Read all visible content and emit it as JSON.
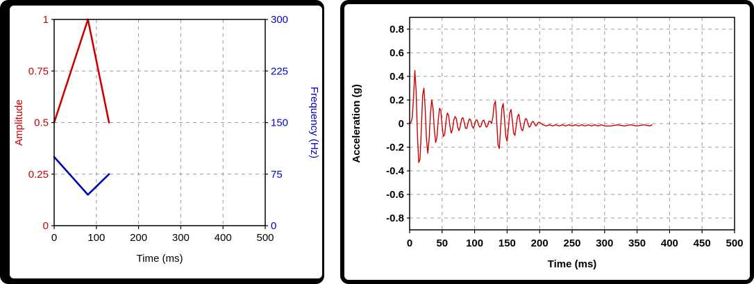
{
  "palette": {
    "window_bg": "#000000",
    "panel_bg": "#ffffff",
    "grid": "#999999",
    "red": "#cc0000",
    "blue": "#0000cc",
    "axis": "#000000"
  },
  "chart_data": [
    {
      "id": "pulse-parameters",
      "type": "line",
      "title": "",
      "xlabel": "Time (ms)",
      "xlim": [
        0,
        500
      ],
      "xticks": [
        0,
        100,
        200,
        300,
        400,
        500
      ],
      "grid": true,
      "legend": "none",
      "axes": [
        {
          "side": "left",
          "label": "Amplitude",
          "lim": [
            0,
            1
          ],
          "ticks": [
            0,
            0.25,
            0.5,
            0.75,
            1
          ],
          "color": "#cc0000"
        },
        {
          "side": "right",
          "label": "Frequency (Hz)",
          "lim": [
            0,
            300
          ],
          "ticks": [
            0,
            75,
            150,
            225,
            300
          ],
          "color": "#0000cc"
        }
      ],
      "series": [
        {
          "name": "Amplitude",
          "axis": 0,
          "color": "#cc0000",
          "width": 2.6,
          "points": [
            [
              0,
              0.5
            ],
            [
              80,
              1.0
            ],
            [
              130,
              0.5
            ]
          ]
        },
        {
          "name": "Frequency",
          "axis": 1,
          "color": "#0000bb",
          "width": 2.6,
          "points": [
            [
              0,
              100
            ],
            [
              80,
              45
            ],
            [
              130,
              75
            ]
          ]
        }
      ]
    },
    {
      "id": "acceleration-response",
      "type": "line",
      "title": "",
      "xlabel": "Time (ms)",
      "xlim": [
        0,
        500
      ],
      "xticks": [
        0,
        50,
        100,
        150,
        200,
        250,
        300,
        350,
        400,
        450,
        500
      ],
      "grid": true,
      "legend": "none",
      "axes": [
        {
          "side": "left",
          "label": "Acceleration (g)",
          "lim": [
            -0.9,
            0.9
          ],
          "ticks": [
            -0.8,
            -0.6,
            -0.4,
            -0.2,
            0,
            0.2,
            0.4,
            0.6,
            0.8
          ],
          "color": "#000000"
        }
      ],
      "series": [
        {
          "name": "Acceleration",
          "axis": 0,
          "color": "#cc0000",
          "width": 1.4,
          "points": [
            [
              0,
              0
            ],
            [
              2,
              0.01
            ],
            [
              4,
              0.05
            ],
            [
              6,
              0.22
            ],
            [
              8,
              0.45
            ],
            [
              10,
              0.28
            ],
            [
              12,
              -0.1
            ],
            [
              14,
              -0.33
            ],
            [
              16,
              -0.3
            ],
            [
              18,
              -0.05
            ],
            [
              20,
              0.24
            ],
            [
              22,
              0.3
            ],
            [
              24,
              0.12
            ],
            [
              26,
              -0.14
            ],
            [
              28,
              -0.25
            ],
            [
              30,
              -0.13
            ],
            [
              32,
              0.08
            ],
            [
              34,
              0.2
            ],
            [
              36,
              0.13
            ],
            [
              38,
              -0.05
            ],
            [
              40,
              -0.16
            ],
            [
              42,
              -0.12
            ],
            [
              44,
              0.03
            ],
            [
              46,
              0.13
            ],
            [
              48,
              0.11
            ],
            [
              50,
              -0.02
            ],
            [
              52,
              -0.11
            ],
            [
              54,
              -0.09
            ],
            [
              56,
              0.02
            ],
            [
              58,
              0.09
            ],
            [
              60,
              0.07
            ],
            [
              62,
              -0.02
            ],
            [
              64,
              -0.08
            ],
            [
              66,
              -0.05
            ],
            [
              68,
              0.03
            ],
            [
              70,
              0.06
            ],
            [
              72,
              0.04
            ],
            [
              74,
              -0.03
            ],
            [
              76,
              -0.06
            ],
            [
              78,
              -0.02
            ],
            [
              80,
              0.04
            ],
            [
              82,
              0.05
            ],
            [
              84,
              0.01
            ],
            [
              86,
              -0.04
            ],
            [
              88,
              -0.04
            ],
            [
              90,
              0.01
            ],
            [
              92,
              0.04
            ],
            [
              94,
              0.03
            ],
            [
              96,
              -0.02
            ],
            [
              98,
              -0.04
            ],
            [
              100,
              -0.01
            ],
            [
              102,
              0.03
            ],
            [
              104,
              0.03
            ],
            [
              106,
              -0.01
            ],
            [
              108,
              -0.03
            ],
            [
              110,
              -0.02
            ],
            [
              112,
              0.02
            ],
            [
              114,
              0.03
            ],
            [
              116,
              0
            ],
            [
              118,
              -0.03
            ],
            [
              120,
              -0.02
            ],
            [
              122,
              0.02
            ],
            [
              124,
              0.02
            ],
            [
              126,
              0
            ],
            [
              128,
              0.05
            ],
            [
              130,
              0.16
            ],
            [
              132,
              0.19
            ],
            [
              134,
              0.02
            ],
            [
              136,
              -0.18
            ],
            [
              138,
              -0.21
            ],
            [
              140,
              -0.04
            ],
            [
              142,
              0.13
            ],
            [
              144,
              0.17
            ],
            [
              146,
              0.04
            ],
            [
              148,
              -0.11
            ],
            [
              150,
              -0.15
            ],
            [
              152,
              -0.04
            ],
            [
              154,
              0.09
            ],
            [
              156,
              0.12
            ],
            [
              158,
              0.03
            ],
            [
              160,
              -0.08
            ],
            [
              162,
              -0.1
            ],
            [
              164,
              -0.02
            ],
            [
              166,
              0.06
            ],
            [
              168,
              0.08
            ],
            [
              170,
              0.01
            ],
            [
              172,
              -0.05
            ],
            [
              174,
              -0.06
            ],
            [
              176,
              -0.01
            ],
            [
              178,
              0.04
            ],
            [
              180,
              0.04
            ],
            [
              182,
              0
            ],
            [
              184,
              -0.03
            ],
            [
              186,
              -0.02
            ],
            [
              188,
              0.01
            ],
            [
              190,
              0.02
            ],
            [
              192,
              0
            ],
            [
              194,
              -0.02
            ],
            [
              196,
              -0.01
            ],
            [
              198,
              0.01
            ],
            [
              200,
              0.01
            ],
            [
              205,
              -0.01
            ],
            [
              210,
              -0.02
            ],
            [
              215,
              -0.01
            ],
            [
              220,
              -0.02
            ],
            [
              225,
              -0.01
            ],
            [
              230,
              -0.02
            ],
            [
              235,
              -0.01
            ],
            [
              240,
              -0.02
            ],
            [
              245,
              -0.01
            ],
            [
              250,
              -0.02
            ],
            [
              255,
              -0.01
            ],
            [
              260,
              -0.02
            ],
            [
              265,
              -0.01
            ],
            [
              270,
              -0.02
            ],
            [
              275,
              -0.01
            ],
            [
              280,
              -0.02
            ],
            [
              285,
              -0.01
            ],
            [
              290,
              -0.02
            ],
            [
              295,
              -0.01
            ],
            [
              300,
              -0.02
            ],
            [
              310,
              -0.02
            ],
            [
              320,
              -0.01
            ],
            [
              330,
              -0.02
            ],
            [
              340,
              -0.01
            ],
            [
              350,
              -0.02
            ],
            [
              360,
              -0.01
            ],
            [
              370,
              -0.02
            ],
            [
              373,
              -0.01
            ]
          ]
        }
      ]
    }
  ]
}
